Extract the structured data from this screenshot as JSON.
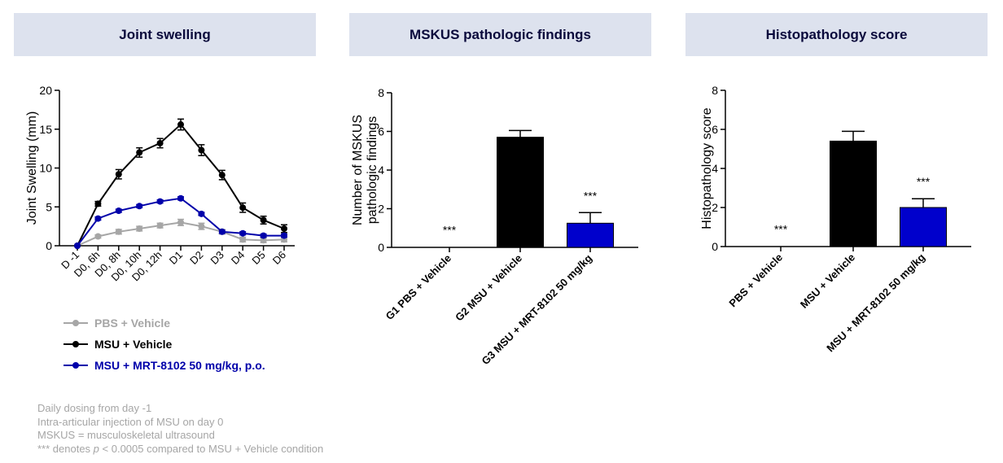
{
  "panels": {
    "joint": {
      "title": "Joint swelling"
    },
    "mskus": {
      "title": "MSKUS pathologic findings"
    },
    "histo": {
      "title": "Histopathology score"
    }
  },
  "legend": [
    {
      "label": "PBS + Vehicle",
      "color": "#a6a6a6"
    },
    {
      "label": "MSU + Vehicle",
      "color": "#000000"
    },
    {
      "label": "MSU + MRT-8102 50 mg/kg, p.o.",
      "color": "#0000aa"
    }
  ],
  "notes": {
    "line1": "Daily dosing from day -1",
    "line2": "Intra-articular injection of MSU on day 0",
    "line3": "MSKUS = musculoskeletal ultrasound",
    "line4_prefix": "*** denotes ",
    "line4_p": "p",
    "line4_suffix": " < 0.0005 compared to MSU + Vehicle condition"
  },
  "chart_data": [
    {
      "type": "line",
      "ylabel": "Joint Swelling (mm)",
      "xlabel": "",
      "ylim": [
        0,
        20
      ],
      "yticks": [
        0,
        5,
        10,
        15,
        20
      ],
      "categories": [
        "D -1",
        "D0, 6h",
        "D0, 8h",
        "D0, 10h",
        "D0, 12h",
        "D1",
        "D2",
        "D3",
        "D4",
        "D5",
        "D6"
      ],
      "series": [
        {
          "name": "PBS + Vehicle",
          "color": "#a6a6a6",
          "values": [
            0,
            1.2,
            1.8,
            2.2,
            2.6,
            3.0,
            2.5,
            1.8,
            0.8,
            0.7,
            0.8
          ],
          "errors": [
            0,
            0.2,
            0.3,
            0.3,
            0.3,
            0.4,
            0.4,
            0.3,
            0.3,
            0.3,
            0.3
          ]
        },
        {
          "name": "MSU + Vehicle",
          "color": "#000000",
          "values": [
            0,
            5.4,
            9.2,
            12.0,
            13.2,
            15.6,
            12.3,
            9.1,
            4.9,
            3.3,
            2.2
          ],
          "errors": [
            0,
            0.3,
            0.6,
            0.6,
            0.6,
            0.7,
            0.7,
            0.6,
            0.6,
            0.5,
            0.5
          ]
        },
        {
          "name": "MSU + MRT-8102 50 mg/kg, p.o.",
          "color": "#0000aa",
          "values": [
            0,
            3.5,
            4.5,
            5.1,
            5.7,
            6.1,
            4.1,
            1.8,
            1.6,
            1.3,
            1.3
          ],
          "errors": [
            0,
            0.2,
            0.2,
            0.2,
            0.2,
            0.2,
            0.2,
            0.2,
            0.2,
            0.2,
            0.2
          ]
        }
      ]
    },
    {
      "type": "bar",
      "ylabel": "Number of MSKUS pathologic findings",
      "ylabel_lines": [
        "Number of MSKUS",
        "pathologic findings"
      ],
      "ylim": [
        0,
        8
      ],
      "yticks": [
        0,
        2,
        4,
        6,
        8
      ],
      "categories": [
        "G1 PBS + Vehicle",
        "G2 MSU + Vehicle",
        "G3 MSU + MRT-8102 50 mg/kg"
      ],
      "values": [
        0,
        5.7,
        1.25
      ],
      "errors": [
        0,
        0.35,
        0.55
      ],
      "colors": [
        "#000000",
        "#000000",
        "#0000cc"
      ],
      "annotations": [
        "***",
        "",
        "***"
      ]
    },
    {
      "type": "bar",
      "ylabel": "Histopathology score",
      "ylim": [
        0,
        8
      ],
      "yticks": [
        0,
        2,
        4,
        6,
        8
      ],
      "categories": [
        "PBS + Vehicle",
        "MSU + Vehicle",
        "MSU + MRT-8102 50 mg/kg"
      ],
      "values": [
        0,
        5.4,
        2.0
      ],
      "errors": [
        0,
        0.5,
        0.45
      ],
      "colors": [
        "#000000",
        "#000000",
        "#0000cc"
      ],
      "annotations": [
        "***",
        "",
        "***"
      ]
    }
  ]
}
